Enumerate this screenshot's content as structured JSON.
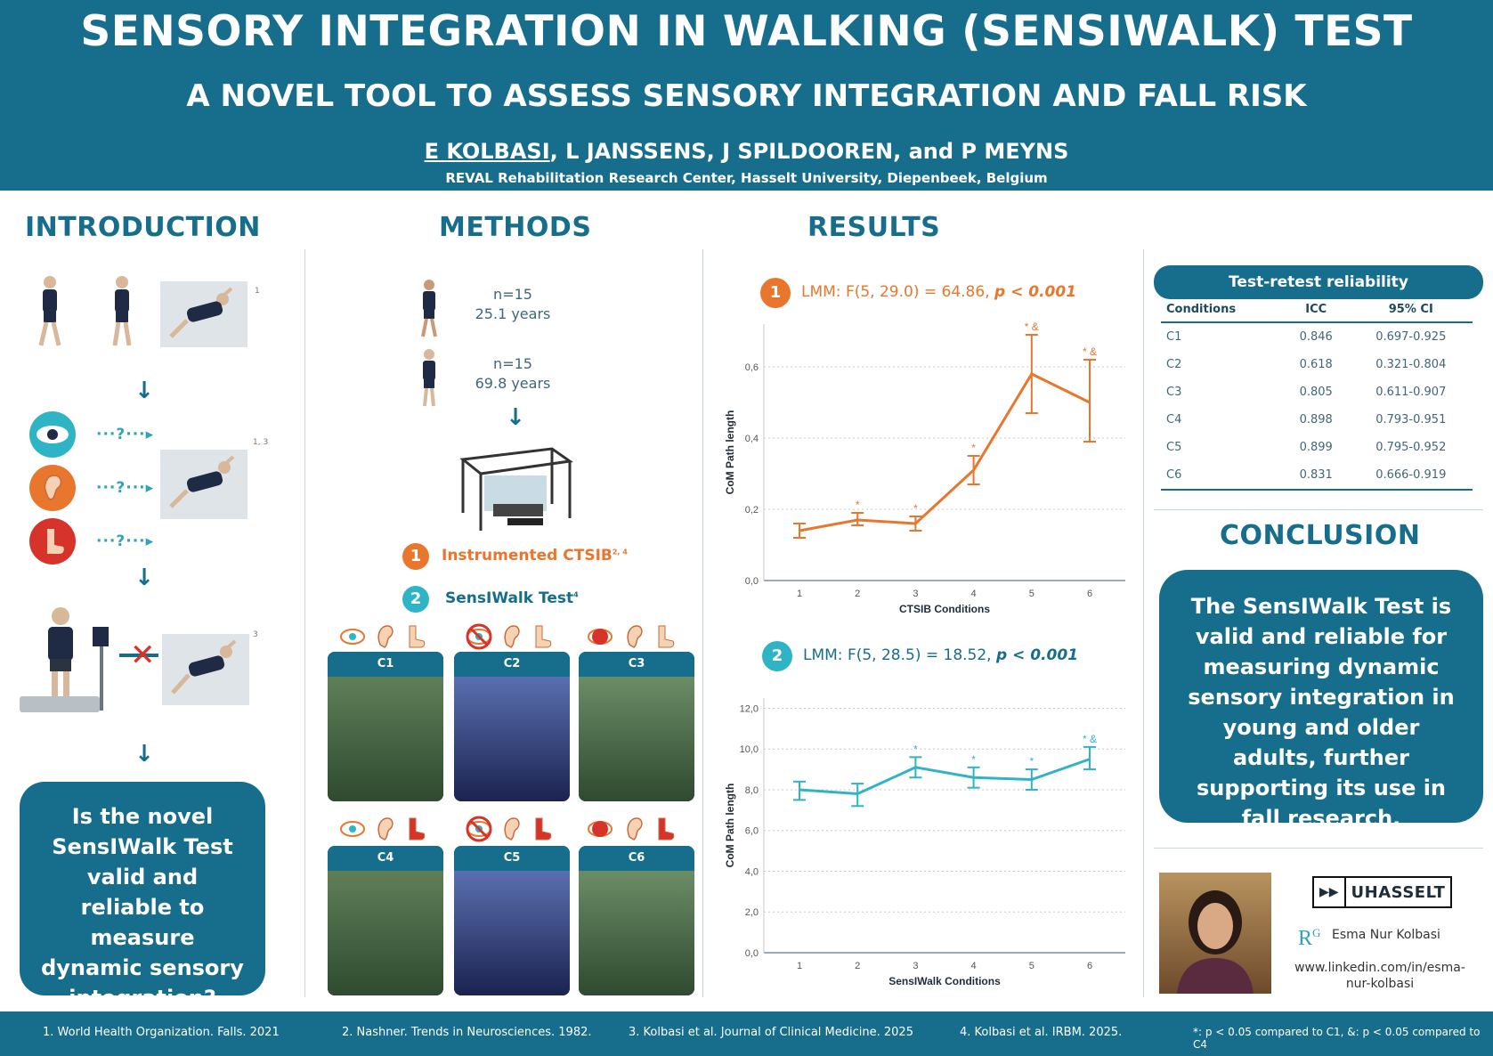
{
  "header": {
    "title": "SENSORY INTEGRATION IN WALKING (SENSIWALK) TEST",
    "subtitle": "A NOVEL TOOL TO ASSESS SENSORY INTEGRATION AND FALL RISK",
    "first_author": "E KOLBASI",
    "other_authors": ", L JANSSENS, J SPILDOOREN, and P MEYNS",
    "affiliation": "REVAL Rehabilitation Research Center, Hasselt University, Diepenbeek, Belgium"
  },
  "sections": {
    "introduction": "INTRODUCTION",
    "methods": "METHODS",
    "results": "RESULTS",
    "conclusion": "CONCLUSION"
  },
  "introduction": {
    "ref_1": "1",
    "ref_2": "1, 3",
    "ref_3": "3",
    "question_marker": "···?···▸",
    "arrow": "↓",
    "question": "Is the novel SensIWalk Test valid and reliable to measure dynamic sensory integration?"
  },
  "methods": {
    "young_n": "n=15",
    "young_age": "25.1 years",
    "old_n": "n=15",
    "old_age": "69.8 years",
    "arrow": "↓",
    "item1_num": "1",
    "item1_label": "Instrumented CTSIB",
    "item1_ref": "2, 4",
    "item2_num": "2",
    "item2_label": "SensIWalk Test",
    "item2_ref": "4",
    "conditions": [
      "C1",
      "C2",
      "C3",
      "C4",
      "C5",
      "C6"
    ]
  },
  "results": {
    "chart1_num": "1",
    "chart1_stat": "LMM: F(5, 29.0) = 64.86,",
    "chart1_p": "p < 0.001",
    "chart2_num": "2",
    "chart2_stat": "LMM: F(5, 28.5) = 18.52,",
    "chart2_p": "p < 0.001"
  },
  "chart_data": [
    {
      "type": "line",
      "xlabel": "CTSIB Conditions",
      "ylabel": "CoM Path length",
      "x": [
        1,
        2,
        3,
        4,
        5,
        6
      ],
      "values": [
        0.14,
        0.17,
        0.16,
        0.31,
        0.58,
        0.5
      ],
      "err_low": [
        0.12,
        0.155,
        0.14,
        0.27,
        0.47,
        0.39
      ],
      "err_high": [
        0.16,
        0.19,
        0.18,
        0.35,
        0.69,
        0.62
      ],
      "markers": [
        "",
        "*",
        "*",
        "*",
        "* &",
        "* &"
      ],
      "yticks": [
        "0,0",
        "0,2",
        "0,4",
        "0,6"
      ],
      "ylim": [
        0,
        0.72
      ],
      "color": "#e8762d"
    },
    {
      "type": "line",
      "xlabel": "SensIWalk Conditions",
      "ylabel": "CoM Path length",
      "x": [
        1,
        2,
        3,
        4,
        5,
        6
      ],
      "values": [
        8.0,
        7.8,
        9.1,
        8.6,
        8.5,
        9.5
      ],
      "err_low": [
        7.5,
        7.2,
        8.6,
        8.1,
        8.0,
        9.0
      ],
      "err_high": [
        8.4,
        8.3,
        9.6,
        9.1,
        9.0,
        10.1
      ],
      "markers": [
        "",
        "",
        "*",
        "*",
        "*",
        "* &"
      ],
      "yticks": [
        "0,0",
        "2,0",
        "4,0",
        "6,0",
        "8,0",
        "10,0",
        "12,0"
      ],
      "ylim": [
        0,
        12.5
      ],
      "color": "#2fb4c6"
    }
  ],
  "reliability": {
    "title": "Test-retest reliability",
    "columns": [
      "Conditions",
      "ICC",
      "95% CI"
    ],
    "rows": [
      [
        "C1",
        "0.846",
        "0.697-0.925"
      ],
      [
        "C2",
        "0.618",
        "0.321-0.804"
      ],
      [
        "C3",
        "0.805",
        "0.611-0.907"
      ],
      [
        "C4",
        "0.898",
        "0.793-0.951"
      ],
      [
        "C5",
        "0.899",
        "0.795-0.952"
      ],
      [
        "C6",
        "0.831",
        "0.666-0.919"
      ]
    ]
  },
  "conclusion": {
    "text": "The SensIWalk Test is valid and reliable for measuring dynamic sensory integration in young and older adults, further supporting its use in fall research."
  },
  "contact": {
    "logo_arrows": "▶▶",
    "logo_text": "UHASSELT",
    "rg": "R",
    "rg_sup": "G",
    "name": "Esma Nur Kolbasi",
    "linkedin": "www.linkedin.com/in/esma-nur-kolbasi"
  },
  "footer": {
    "ref1": "1.      World Health Organization. Falls. 2021",
    "ref2": "2. Nashner. Trends in Neurosciences. 1982.",
    "ref3": "3. Kolbasi et al. Journal of Clinical Medicine. 2025",
    "ref4": "4. Kolbasi et al. IRBM. 2025.",
    "note": "*: p < 0.05 compared to C1, &: p < 0.05 compared to C4"
  },
  "colors": {
    "brand": "#176e8c",
    "orange": "#e8762d",
    "teal": "#2fb4c6"
  }
}
